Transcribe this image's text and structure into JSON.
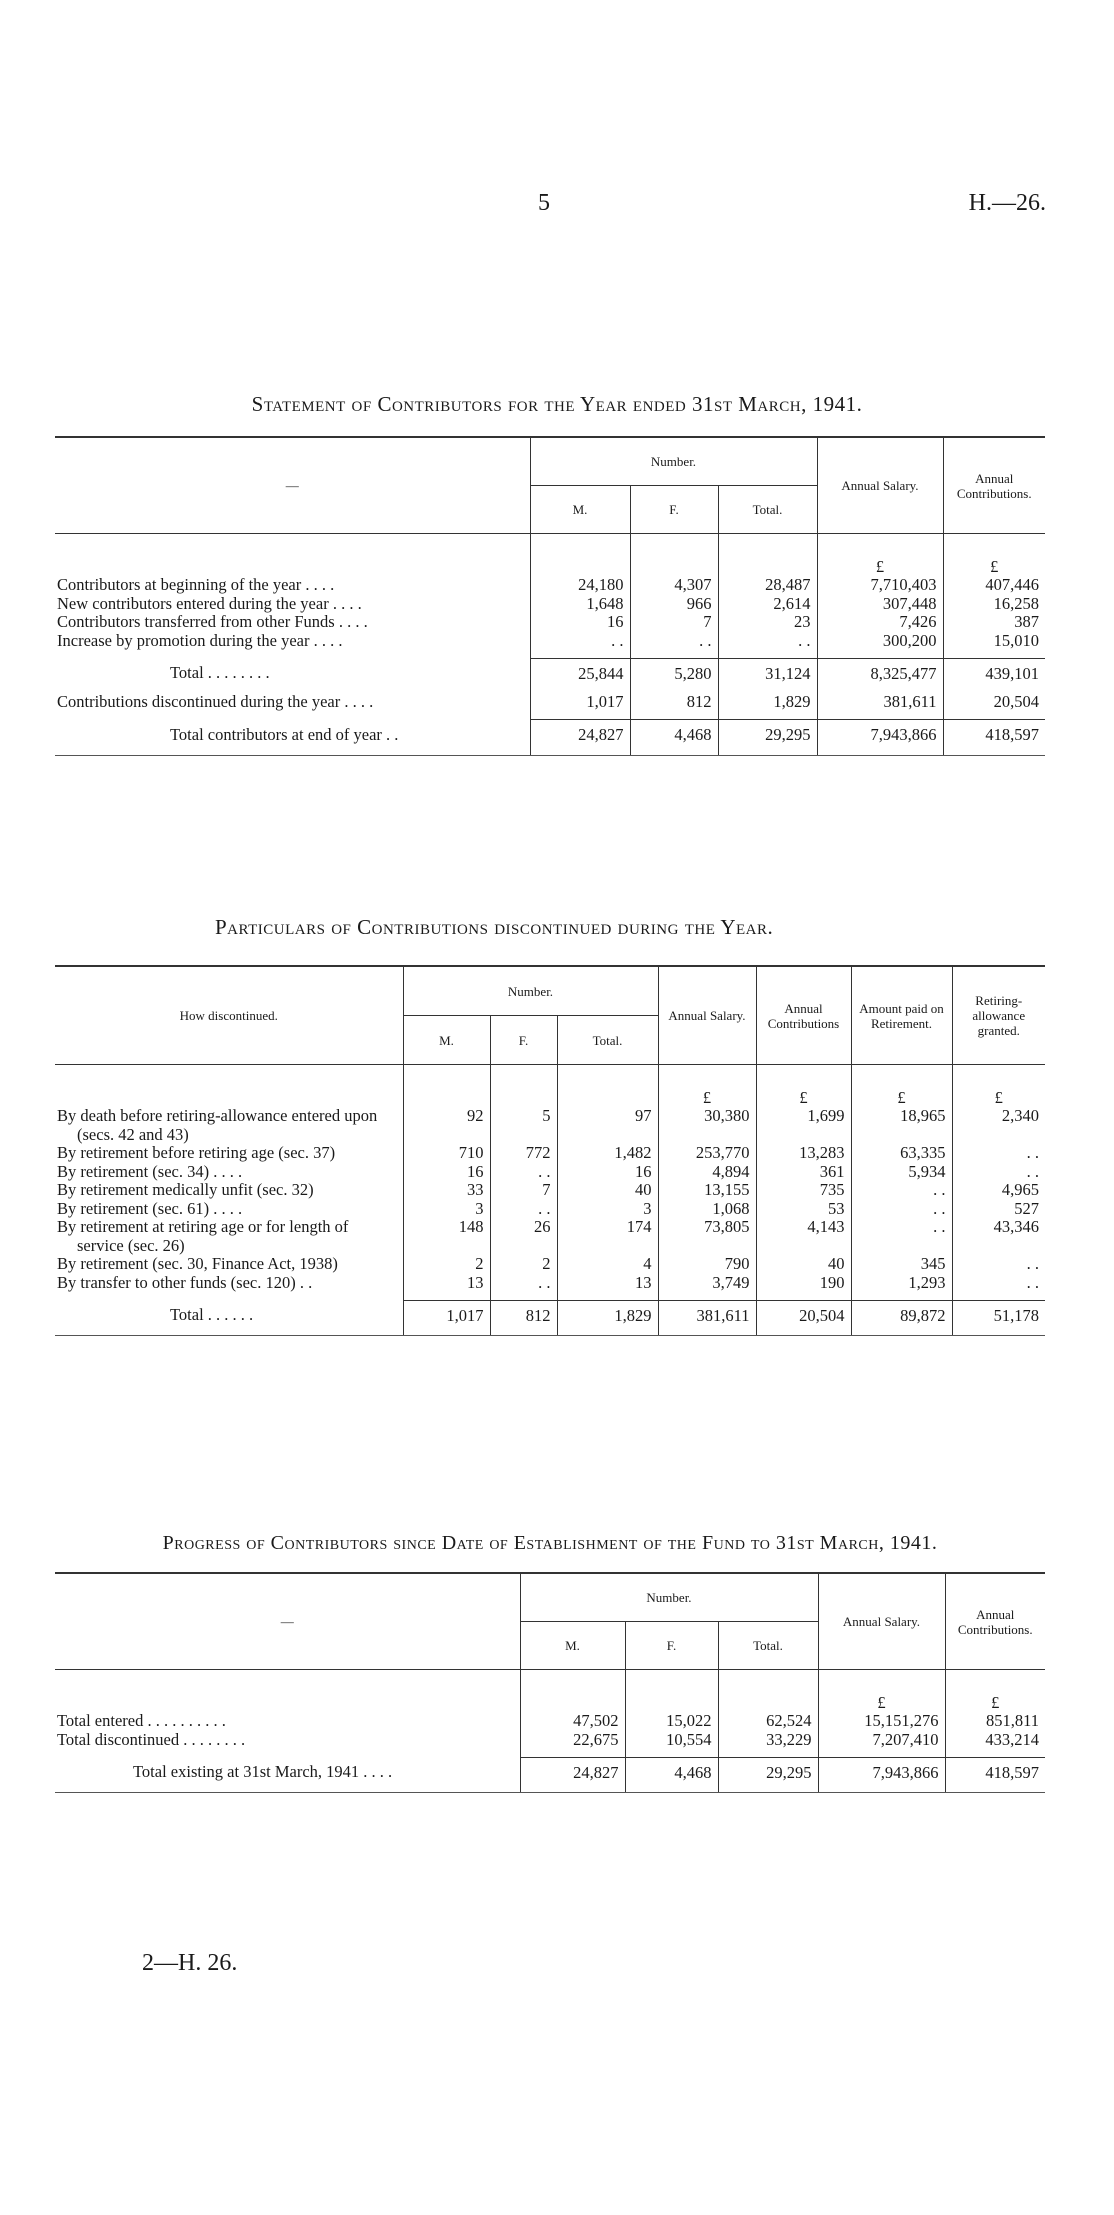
{
  "header": {
    "page_number": "5",
    "doc_ref": "H.—26."
  },
  "footer": {
    "signature": "2—H. 26."
  },
  "table1": {
    "title": "Statement of Contributors for the Year ended 31st March, 1941.",
    "stub_header": "—",
    "group_header": "Number.",
    "columns": [
      "M.",
      "F.",
      "Total.",
      "Annual Salary.",
      "Annual Contributions."
    ],
    "units": [
      "",
      "",
      "",
      "£",
      "£"
    ],
    "rows": [
      {
        "label": "Contributors at beginning of the year  . .   . .",
        "values": [
          "24,180",
          "4,307",
          "28,487",
          "7,710,403",
          "407,446"
        ]
      },
      {
        "label": "New contributors entered during the year  . .   . .",
        "values": [
          "1,648",
          "966",
          "2,614",
          "307,448",
          "16,258"
        ]
      },
      {
        "label": "Contributors transferred from other Funds . .   . .",
        "values": [
          "16",
          "7",
          "23",
          "7,426",
          "387"
        ]
      },
      {
        "label": "Increase by promotion during the year  . .   . .",
        "values": [
          ". .",
          ". .",
          ". .",
          "300,200",
          "15,010"
        ]
      },
      {
        "label": "Total   . .   . .   . .   . .",
        "values": [
          "25,844",
          "5,280",
          "31,124",
          "8,325,477",
          "439,101"
        ],
        "rule": true,
        "indent": 1
      },
      {
        "label": "Contributions discontinued during the year . .   . .",
        "values": [
          "1,017",
          "812",
          "1,829",
          "381,611",
          "20,504"
        ]
      },
      {
        "label": "Total contributors at end of year   . .",
        "values": [
          "24,827",
          "4,468",
          "29,295",
          "7,943,866",
          "418,597"
        ],
        "rule": true,
        "indent": 1
      }
    ]
  },
  "table2": {
    "title": "Particulars of Contributions discontinued during the Year.",
    "stub_header": "How discontinued.",
    "group_header": "Number.",
    "columns": [
      "M.",
      "F.",
      "Total.",
      "Annual Salary.",
      "Annual Contributions",
      "Amount paid on Retirement.",
      "Retiring-allowance granted."
    ],
    "units": [
      "",
      "",
      "",
      "£",
      "£",
      "£",
      "£"
    ],
    "rows": [
      {
        "label": "By death before retiring-allowance entered upon (secs. 42 and 43)",
        "values": [
          "92",
          "5",
          "97",
          "30,380",
          "1,699",
          "18,965",
          "2,340"
        ]
      },
      {
        "label": "By retirement before retiring age (sec. 37)",
        "values": [
          "710",
          "772",
          "1,482",
          "253,770",
          "13,283",
          "63,335",
          ". ."
        ]
      },
      {
        "label": "By retirement (sec. 34)   . .   . .",
        "values": [
          "16",
          ". .",
          "16",
          "4,894",
          "361",
          "5,934",
          ". ."
        ]
      },
      {
        "label": "By retirement medically unfit (sec. 32)",
        "values": [
          "33",
          "7",
          "40",
          "13,155",
          "735",
          ". .",
          "4,965"
        ]
      },
      {
        "label": "By retirement (sec. 61)   . .   . .",
        "values": [
          "3",
          ". .",
          "3",
          "1,068",
          "53",
          ". .",
          "527"
        ]
      },
      {
        "label": "By retirement at retiring age or for length of service (sec. 26)",
        "values": [
          "148",
          "26",
          "174",
          "73,805",
          "4,143",
          ". .",
          "43,346"
        ]
      },
      {
        "label": "By retirement (sec. 30, Finance Act, 1938)",
        "values": [
          "2",
          "2",
          "4",
          "790",
          "40",
          "345",
          ". ."
        ]
      },
      {
        "label": "By transfer to other funds (sec. 120) . .",
        "values": [
          "13",
          ". .",
          "13",
          "3,749",
          "190",
          "1,293",
          ". ."
        ]
      },
      {
        "label": "Total   . .   . .   . .",
        "values": [
          "1,017",
          "812",
          "1,829",
          "381,611",
          "20,504",
          "89,872",
          "51,178"
        ],
        "rule": true,
        "indent": 1
      }
    ]
  },
  "table3": {
    "title": "Progress of Contributors since Date of Establishment of the Fund to 31st March, 1941.",
    "stub_header": "—",
    "group_header": "Number.",
    "columns": [
      "M.",
      "F.",
      "Total.",
      "Annual Salary.",
      "Annual Contributions."
    ],
    "units": [
      "",
      "",
      "",
      "£",
      "£"
    ],
    "rows": [
      {
        "label": "Total entered  . .   . .   . .   . .   . .",
        "values": [
          "47,502",
          "15,022",
          "62,524",
          "15,151,276",
          "851,811"
        ]
      },
      {
        "label": "Total discontinued   . .   . .   . .   . .",
        "values": [
          "22,675",
          "10,554",
          "33,229",
          "7,207,410",
          "433,214"
        ]
      },
      {
        "label": "Total existing at 31st March, 1941 . .   . .",
        "values": [
          "24,827",
          "4,468",
          "29,295",
          "7,943,866",
          "418,597"
        ],
        "rule": true,
        "indent": 2
      }
    ]
  }
}
